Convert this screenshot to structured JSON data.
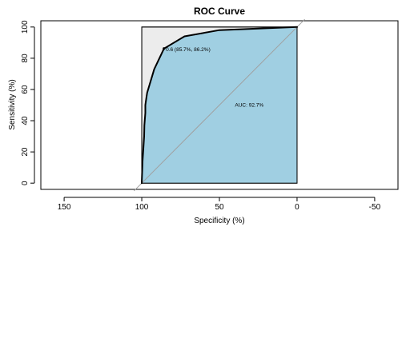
{
  "chart_data": {
    "type": "area",
    "title": "ROC Curve",
    "xlabel": "Specificity (%)",
    "ylabel": "Sensitivity (%)",
    "x_reversed": true,
    "xlim": [
      165,
      -65
    ],
    "ylim": [
      -4,
      104
    ],
    "xticks": [
      150,
      100,
      50,
      0,
      -50
    ],
    "xtick_labels": [
      "150",
      "100",
      "50",
      "0",
      "-50"
    ],
    "yticks": [
      0,
      20,
      40,
      60,
      80,
      100
    ],
    "ytick_labels": [
      "0",
      "20",
      "40",
      "60",
      "80",
      "100"
    ],
    "grid": false,
    "series": [
      {
        "color": "#000000",
        "x": [
          100,
          99.5,
          98.5,
          98.3,
          97.7,
          97.7,
          97.0,
          96.5,
          92.0,
          85.7,
          72.5,
          50.0,
          0
        ],
        "y": [
          0,
          14,
          30,
          37,
          45,
          50,
          55,
          58,
          73,
          86.2,
          94,
          98,
          100
        ]
      }
    ],
    "auc_fill_color": "#a0cfe2",
    "partial_fill_color": "#ececec",
    "diagonal_color": "#a0a0a0",
    "threshold_point": {
      "x": 85.7,
      "y": 86.2
    },
    "annotations": [
      {
        "text": "0.6 (85.7%, 86.2%)",
        "x": 84.5,
        "y": 84.5
      },
      {
        "text": "AUC: 92.7%",
        "x": 40,
        "y": 49
      }
    ]
  }
}
